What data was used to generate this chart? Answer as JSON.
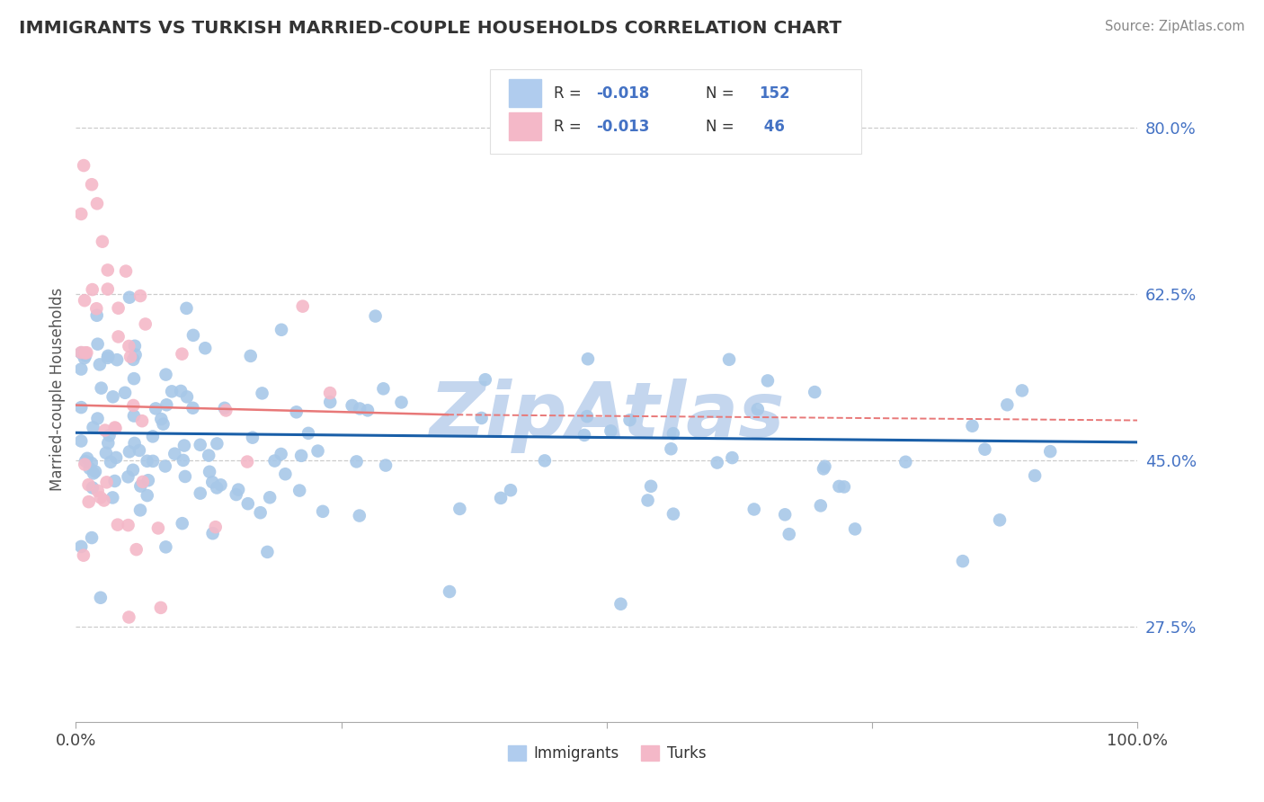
{
  "title": "IMMIGRANTS VS TURKISH MARRIED-COUPLE HOUSEHOLDS CORRELATION CHART",
  "source": "Source: ZipAtlas.com",
  "ylabel": "Married-couple Households",
  "ytick_labels": [
    "27.5%",
    "45.0%",
    "62.5%",
    "80.0%"
  ],
  "ytick_values": [
    0.275,
    0.45,
    0.625,
    0.8
  ],
  "xlim": [
    0.0,
    1.0
  ],
  "ylim": [
    0.175,
    0.875
  ],
  "color_immigrants": "#a8c8e8",
  "color_turks": "#f4b8c8",
  "color_trend_immigrants": "#1a5fa8",
  "color_trend_turks": "#e87878",
  "watermark": "ZipAtlas",
  "watermark_color_r": 196,
  "watermark_color_g": 214,
  "watermark_color_b": 238,
  "background_color": "#ffffff",
  "legend_box_color": "#e0e0e0",
  "title_color": "#333333",
  "source_color": "#888888",
  "ytick_color": "#4472c4",
  "label_color": "#555555"
}
